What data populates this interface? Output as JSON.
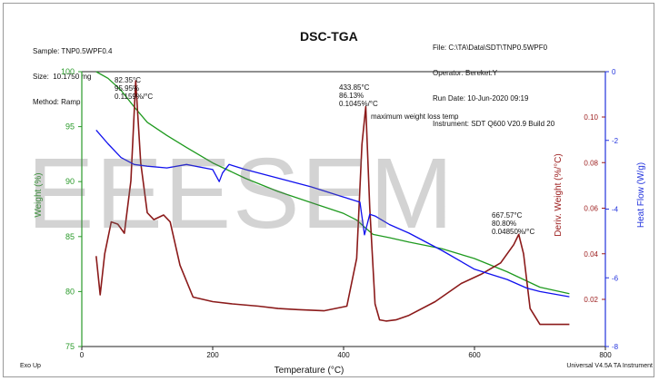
{
  "header": {
    "left": [
      "Sample: TNP0.5WPF0.4",
      "Size:  10.1750 mg",
      "Method: Ramp"
    ],
    "title": "DSC-TGA",
    "right": [
      "File: C:\\TA\\Data\\SDT\\TNP0.5WPF0",
      "Operator: Bereket.Y",
      "Run Date: 10-Jun-2020 09:19",
      "Instrument: SDT Q600 V20.9 Build 20"
    ]
  },
  "footer": {
    "left": "Exo Up",
    "right": "Universal V4.5A TA Instrument"
  },
  "watermark": "EEESEM",
  "colors": {
    "weight": "#1f9a1f",
    "deriv": "#8b1a1a",
    "heat": "#1010ee",
    "axis_left": "#2a9a2a",
    "axis_right1": "#9b1b1b",
    "axis_right2": "#2233dd"
  },
  "chart_data": {
    "type": "line",
    "xlabel": "Temperature (°C)",
    "xlim": [
      0,
      800
    ],
    "xticks": [
      0,
      200,
      400,
      600,
      800
    ],
    "axes": {
      "weight": {
        "label": "Weight (%)",
        "ylim": [
          75,
          100
        ],
        "ticks": [
          75,
          80,
          85,
          90,
          95,
          100
        ]
      },
      "deriv": {
        "label": "Deriv. Weight (%/°C)",
        "ticks": [
          0.02,
          0.04,
          0.06,
          0.08,
          0.1
        ]
      },
      "heat": {
        "label": "Heat Flow (W/g)",
        "ylim": [
          -8,
          0
        ],
        "ticks": [
          0,
          -2,
          -4,
          -6,
          -8
        ]
      }
    },
    "series": [
      {
        "name": "Weight (%)",
        "axis": "weight",
        "x": [
          22,
          40,
          60,
          80,
          100,
          130,
          160,
          200,
          250,
          300,
          350,
          400,
          420,
          435,
          445,
          470,
          500,
          550,
          600,
          650,
          700,
          745
        ],
        "y": [
          100,
          99.4,
          98.3,
          96.8,
          95.4,
          94.2,
          93.1,
          91.7,
          90.3,
          89.1,
          88.1,
          87.1,
          86.5,
          85.7,
          85.2,
          84.9,
          84.5,
          83.9,
          83.0,
          81.8,
          80.4,
          79.8
        ]
      },
      {
        "name": "Deriv. Weight (%/°C)",
        "axis": "deriv",
        "x": [
          22,
          28,
          35,
          45,
          55,
          65,
          75,
          82.35,
          90,
          100,
          110,
          125,
          135,
          150,
          170,
          200,
          230,
          270,
          300,
          330,
          370,
          405,
          420,
          428,
          433.85,
          440,
          448,
          455,
          465,
          480,
          500,
          540,
          580,
          610,
          640,
          660,
          667.57,
          675,
          685,
          700,
          745
        ],
        "y": [
          0.039,
          0.022,
          0.04,
          0.054,
          0.053,
          0.049,
          0.072,
          0.1159,
          0.08,
          0.058,
          0.055,
          0.057,
          0.054,
          0.035,
          0.021,
          0.019,
          0.018,
          0.017,
          0.016,
          0.0155,
          0.015,
          0.017,
          0.038,
          0.088,
          0.1045,
          0.06,
          0.018,
          0.011,
          0.0105,
          0.011,
          0.013,
          0.019,
          0.027,
          0.031,
          0.036,
          0.044,
          0.0485,
          0.04,
          0.016,
          0.009,
          0.009
        ]
      },
      {
        "name": "Heat Flow (W/g)",
        "axis": "heat",
        "x": [
          22,
          40,
          60,
          80,
          100,
          130,
          160,
          200,
          210,
          215,
          225,
          250,
          300,
          350,
          400,
          425,
          432,
          440,
          448,
          470,
          500,
          550,
          600,
          650,
          680,
          700,
          745
        ],
        "y": [
          -1.7,
          -2.1,
          -2.5,
          -2.7,
          -2.75,
          -2.8,
          -2.7,
          -2.85,
          -3.2,
          -2.95,
          -2.7,
          -2.85,
          -3.1,
          -3.35,
          -3.65,
          -3.8,
          -4.75,
          -4.15,
          -4.2,
          -4.45,
          -4.7,
          -5.2,
          -5.75,
          -6.05,
          -6.3,
          -6.4,
          -6.55
        ]
      }
    ],
    "annotations": [
      {
        "lines": [
          "82.35°C",
          "95.95%",
          "0.1159%/°C"
        ]
      },
      {
        "lines": [
          "433.85°C",
          "86.13%",
          "0.1045%/°C"
        ]
      },
      {
        "lines": [
          "maximum weight loss temp"
        ]
      },
      {
        "lines": [
          "667.57°C",
          "80.80%",
          "0.04850%/°C"
        ]
      }
    ]
  }
}
